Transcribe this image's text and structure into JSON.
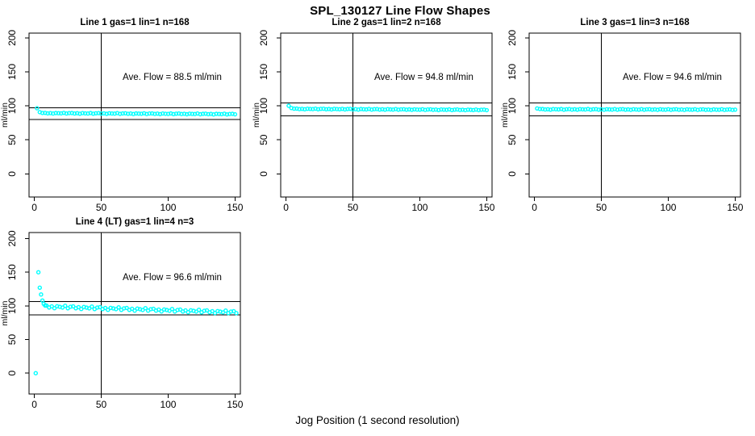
{
  "title": "SPL_130127  Line Flow Shapes",
  "xlabel": "Jog Position (1 second resolution)",
  "accent_color": "#00FFFF",
  "axis_color": "#000000",
  "chart_data": [
    {
      "type": "scatter",
      "title": "Line 1 gas=1 lin=1 n=168",
      "annotation": "Ave. Flow =  88.5  ml/min",
      "ave_flow": 88.5,
      "n": 168,
      "ylabel": "ml/min",
      "x_ticks": [
        0,
        50,
        100,
        150
      ],
      "y_ticks": [
        0,
        50,
        100,
        150,
        200
      ],
      "xlim": [
        -4,
        154
      ],
      "ylim": [
        -34,
        207
      ],
      "vline_x": 50,
      "ref_lines": [
        97.4,
        79.7
      ],
      "legend": "none",
      "grid": false,
      "series": {
        "x_start": 2,
        "x_step": 2,
        "y": [
          96.5,
          90.8,
          89.6,
          89.7,
          89.0,
          89.4,
          88.7,
          89.5,
          89.2,
          89.0,
          89.7,
          88.7,
          89.3,
          89.5,
          88.8,
          89.2,
          88.5,
          89.3,
          89.0,
          88.8,
          89.5,
          88.5,
          89.1,
          89.3,
          88.6,
          89.0,
          88.3,
          89.1,
          88.8,
          88.6,
          89.3,
          88.3,
          88.9,
          89.1,
          88.4,
          88.8,
          88.1,
          88.9,
          88.6,
          88.4,
          89.1,
          88.1,
          88.7,
          88.9,
          88.2,
          88.6,
          87.9,
          88.7,
          88.4,
          88.2,
          88.9,
          87.9,
          88.5,
          88.7,
          88.0,
          88.4,
          87.7,
          88.5,
          88.2,
          88.0,
          88.7,
          87.7,
          88.3,
          88.5,
          87.8,
          88.2,
          87.5,
          88.3,
          88.0,
          87.8,
          88.5,
          87.5,
          88.1,
          88.3,
          87.6
        ]
      }
    },
    {
      "type": "scatter",
      "title": "Line 2 gas=1 lin=2 n=168",
      "annotation": "Ave. Flow =  94.8  ml/min",
      "ave_flow": 94.8,
      "n": 168,
      "ylabel": "ml/min",
      "x_ticks": [
        0,
        50,
        100,
        150
      ],
      "y_ticks": [
        0,
        50,
        100,
        150,
        200
      ],
      "xlim": [
        -4,
        154
      ],
      "ylim": [
        -34,
        207
      ],
      "vline_x": 50,
      "ref_lines": [
        104.3,
        85.3
      ],
      "legend": "none",
      "grid": false,
      "series": {
        "x_start": 2,
        "x_step": 2,
        "y": [
          100.2,
          96.8,
          95.9,
          96.0,
          95.3,
          95.7,
          95.0,
          95.8,
          95.5,
          95.3,
          95.9,
          95.0,
          95.6,
          95.8,
          95.1,
          95.4,
          94.8,
          95.6,
          95.3,
          95.1,
          95.7,
          94.8,
          95.4,
          95.6,
          94.8,
          95.2,
          94.6,
          95.4,
          95.1,
          94.8,
          95.5,
          94.6,
          95.2,
          95.3,
          94.6,
          95.0,
          94.4,
          95.2,
          94.8,
          94.6,
          95.3,
          94.4,
          94.9,
          95.1,
          94.4,
          94.8,
          94.2,
          94.9,
          94.6,
          94.4,
          95.1,
          94.1,
          94.7,
          94.9,
          94.2,
          94.6,
          93.9,
          94.7,
          94.4,
          94.2,
          94.8,
          93.9,
          94.5,
          94.7,
          94.0,
          94.3,
          93.7,
          94.5,
          94.2,
          93.9,
          94.6,
          93.7,
          94.3,
          94.5,
          93.7
        ]
      }
    },
    {
      "type": "scatter",
      "title": "Line 3 gas=1 lin=3 n=168",
      "annotation": "Ave. Flow =  94.6  ml/min",
      "ave_flow": 94.6,
      "n": 168,
      "ylabel": "ml/min",
      "x_ticks": [
        0,
        50,
        100,
        150
      ],
      "y_ticks": [
        0,
        50,
        100,
        150,
        200
      ],
      "xlim": [
        -4,
        154
      ],
      "ylim": [
        -34,
        207
      ],
      "vline_x": 50,
      "ref_lines": [
        104.1,
        85.1
      ],
      "legend": "none",
      "grid": false,
      "series": {
        "x_start": 2,
        "x_step": 2,
        "y": [
          96.2,
          95.4,
          95.4,
          94.7,
          95.1,
          94.5,
          95.3,
          95.0,
          94.8,
          95.4,
          94.5,
          95.1,
          95.3,
          94.6,
          95.0,
          94.4,
          95.2,
          94.9,
          94.7,
          95.4,
          94.5,
          95.0,
          95.2,
          94.5,
          94.9,
          94.3,
          95.1,
          94.8,
          94.6,
          95.3,
          94.4,
          95.0,
          95.2,
          94.5,
          94.8,
          94.2,
          95.0,
          94.7,
          94.5,
          95.2,
          94.3,
          94.9,
          95.1,
          94.4,
          94.8,
          94.2,
          95.0,
          94.6,
          94.4,
          95.1,
          94.2,
          94.8,
          95.0,
          94.3,
          94.7,
          94.1,
          94.9,
          94.6,
          94.4,
          95.0,
          94.1,
          94.7,
          94.9,
          94.2,
          94.6,
          94.0,
          94.8,
          94.5,
          94.3,
          95.0,
          94.1,
          94.6,
          94.8,
          94.1,
          94.5
        ]
      }
    },
    {
      "type": "scatter",
      "title": "Line 4 (LT) gas=1 lin=4 n=3",
      "annotation": "Ave. Flow =  96.6  ml/min",
      "ave_flow": 96.6,
      "n": 3,
      "ylabel": "ml/min",
      "x_ticks": [
        0,
        50,
        100,
        150
      ],
      "y_ticks": [
        0,
        50,
        100,
        150,
        200
      ],
      "xlim": [
        -4,
        154
      ],
      "ylim": [
        -31,
        209
      ],
      "vline_x": 50,
      "ref_lines": [
        106.3,
        86.9
      ],
      "legend": "none",
      "grid": false,
      "series": {
        "points": [
          [
            1,
            0
          ],
          [
            3,
            150
          ],
          [
            4,
            127
          ],
          [
            5,
            117
          ],
          [
            6,
            108
          ],
          [
            7,
            103
          ],
          [
            8,
            100.5
          ],
          [
            9,
            100.5
          ],
          [
            11,
            97.7
          ],
          [
            13,
            99.3
          ],
          [
            15,
            96.6
          ],
          [
            17,
            99.5
          ],
          [
            19,
            98.6
          ],
          [
            21,
            97.5
          ],
          [
            23,
            100.2
          ],
          [
            25,
            96.5
          ],
          [
            27,
            98.7
          ],
          [
            29,
            99.3
          ],
          [
            31,
            96.5
          ],
          [
            33,
            98.1
          ],
          [
            35,
            95.4
          ],
          [
            37,
            98.3
          ],
          [
            39,
            97.4
          ],
          [
            41,
            96.3
          ],
          [
            43,
            99.0
          ],
          [
            45,
            95.3
          ],
          [
            47,
            97.5
          ],
          [
            49,
            98.1
          ],
          [
            51,
            95.3
          ],
          [
            53,
            96.9
          ],
          [
            55,
            94.2
          ],
          [
            57,
            97.1
          ],
          [
            59,
            96.2
          ],
          [
            61,
            95.1
          ],
          [
            63,
            97.8
          ],
          [
            65,
            94.1
          ],
          [
            67,
            96.3
          ],
          [
            69,
            96.9
          ],
          [
            71,
            94.1
          ],
          [
            73,
            95.7
          ],
          [
            75,
            93.0
          ],
          [
            77,
            95.9
          ],
          [
            79,
            95.0
          ],
          [
            81,
            93.9
          ],
          [
            83,
            96.6
          ],
          [
            85,
            92.9
          ],
          [
            87,
            95.1
          ],
          [
            89,
            95.7
          ],
          [
            91,
            92.9
          ],
          [
            93,
            94.5
          ],
          [
            95,
            91.8
          ],
          [
            97,
            94.7
          ],
          [
            99,
            93.8
          ],
          [
            101,
            92.7
          ],
          [
            103,
            95.4
          ],
          [
            105,
            91.7
          ],
          [
            107,
            93.9
          ],
          [
            109,
            94.5
          ],
          [
            111,
            91.7
          ],
          [
            113,
            93.3
          ],
          [
            115,
            90.6
          ],
          [
            117,
            93.5
          ],
          [
            119,
            92.6
          ],
          [
            121,
            91.5
          ],
          [
            123,
            94.2
          ],
          [
            125,
            90.5
          ],
          [
            127,
            92.7
          ],
          [
            129,
            93.3
          ],
          [
            131,
            90.5
          ],
          [
            133,
            92.1
          ],
          [
            135,
            89.4
          ],
          [
            137,
            92.3
          ],
          [
            139,
            91.4
          ],
          [
            141,
            90.3
          ],
          [
            143,
            93.0
          ],
          [
            145,
            89.3
          ],
          [
            147,
            91.5
          ],
          [
            149,
            92.1
          ],
          [
            151,
            89.3
          ]
        ]
      }
    }
  ]
}
